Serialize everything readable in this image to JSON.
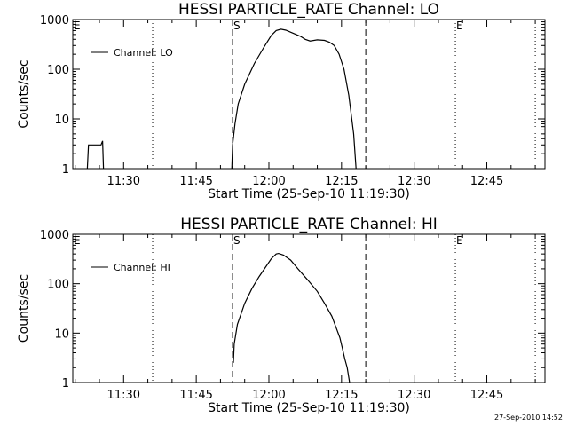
{
  "footer_text": "27-Sep-2010 14:52",
  "chart_data": [
    {
      "type": "line",
      "title": "HESSI PARTICLE_RATE Channel: LO",
      "xlabel": "Start Time (25-Sep-10 11:19:30)",
      "ylabel": "Counts/sec",
      "xscale": "time",
      "yscale": "log",
      "xlim": [
        "11:19:30",
        "12:57:00"
      ],
      "ylim": [
        1,
        1000
      ],
      "x_ticks": [
        "11:30",
        "11:45",
        "12:00",
        "12:15",
        "12:30",
        "12:45"
      ],
      "y_ticks": [
        "1",
        "10",
        "100",
        "1000"
      ],
      "legend": {
        "label": "Channel: LO",
        "position": "top-left"
      },
      "markers": [
        {
          "time": "11:19:30",
          "label": "E",
          "style": "solid"
        },
        {
          "time": "11:36:00",
          "label": "",
          "style": "dotted"
        },
        {
          "time": "11:52:30",
          "label": "S",
          "style": "dashed"
        },
        {
          "time": "12:20:00",
          "label": "",
          "style": "dashed"
        },
        {
          "time": "12:38:30",
          "label": "E",
          "style": "dotted"
        },
        {
          "time": "12:55:00",
          "label": "",
          "style": "dotted"
        }
      ],
      "series": [
        {
          "name": "Channel: LO",
          "segments": [
            [
              [
                "11:22:30",
                1
              ],
              [
                "11:22:45",
                3
              ],
              [
                "11:25:20",
                3
              ],
              [
                "11:25:40",
                3.6
              ],
              [
                "11:25:50",
                1
              ]
            ],
            [
              [
                "11:52:20",
                1
              ],
              [
                "11:52:30",
                3
              ],
              [
                "11:53:00",
                8
              ],
              [
                "11:53:40",
                20
              ],
              [
                "11:55:00",
                50
              ],
              [
                "11:57:00",
                130
              ],
              [
                "11:59:00",
                280
              ],
              [
                "12:00:30",
                480
              ],
              [
                "12:01:30",
                600
              ],
              [
                "12:02:30",
                640
              ],
              [
                "12:03:30",
                610
              ],
              [
                "12:05:00",
                530
              ],
              [
                "12:06:30",
                460
              ],
              [
                "12:07:30",
                400
              ],
              [
                "12:08:30",
                370
              ],
              [
                "12:10:00",
                390
              ],
              [
                "12:11:30",
                380
              ],
              [
                "12:12:30",
                350
              ],
              [
                "12:13:30",
                300
              ],
              [
                "12:14:30",
                200
              ],
              [
                "12:15:30",
                100
              ],
              [
                "12:16:30",
                30
              ],
              [
                "12:17:30",
                5
              ],
              [
                "12:18:00",
                1
              ]
            ]
          ]
        }
      ]
    },
    {
      "type": "line",
      "title": "HESSI PARTICLE_RATE Channel: HI",
      "xlabel": "Start Time (25-Sep-10 11:19:30)",
      "ylabel": "Counts/sec",
      "xscale": "time",
      "yscale": "log",
      "xlim": [
        "11:19:30",
        "12:57:00"
      ],
      "ylim": [
        1,
        1000
      ],
      "x_ticks": [
        "11:30",
        "11:45",
        "12:00",
        "12:15",
        "12:30",
        "12:45"
      ],
      "y_ticks": [
        "1",
        "10",
        "100",
        "1000"
      ],
      "legend": {
        "label": "Channel: HI",
        "position": "top-left"
      },
      "markers": [
        {
          "time": "11:19:30",
          "label": "E",
          "style": "solid"
        },
        {
          "time": "11:36:00",
          "label": "",
          "style": "dotted"
        },
        {
          "time": "11:52:30",
          "label": "S",
          "style": "dashed"
        },
        {
          "time": "12:20:00",
          "label": "",
          "style": "dashed"
        },
        {
          "time": "12:38:30",
          "label": "E",
          "style": "dotted"
        },
        {
          "time": "12:55:00",
          "label": "",
          "style": "dotted"
        }
      ],
      "series": [
        {
          "name": "Channel: HI",
          "segments": [
            [
              [
                "11:52:40",
                2.5
              ],
              [
                "11:52:50",
                6
              ],
              [
                "11:53:30",
                15
              ],
              [
                "11:55:00",
                40
              ],
              [
                "11:56:30",
                80
              ],
              [
                "11:58:00",
                140
              ],
              [
                "11:59:30",
                230
              ],
              [
                "12:00:30",
                320
              ],
              [
                "12:01:30",
                400
              ],
              [
                "12:02:00",
                410
              ],
              [
                "12:03:00",
                380
              ],
              [
                "12:04:30",
                300
              ],
              [
                "12:06:00",
                200
              ],
              [
                "12:08:00",
                120
              ],
              [
                "12:10:00",
                70
              ],
              [
                "12:11:30",
                40
              ],
              [
                "12:13:00",
                22
              ],
              [
                "12:14:00",
                12
              ],
              [
                "12:14:40",
                8
              ],
              [
                "12:15:10",
                5
              ],
              [
                "12:15:40",
                3
              ],
              [
                "12:16:10",
                2
              ],
              [
                "12:16:40",
                1
              ]
            ]
          ]
        }
      ]
    }
  ]
}
